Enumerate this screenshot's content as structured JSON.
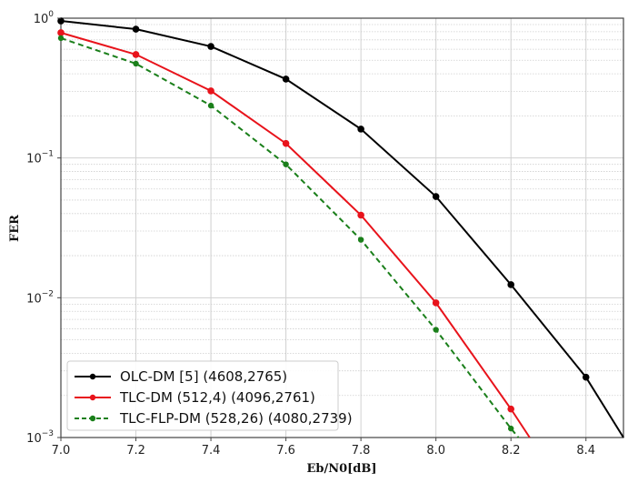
{
  "chart_data": {
    "type": "line",
    "title": "",
    "xlabel": "Eb/N0[dB]",
    "ylabel": "FER",
    "xlim": [
      7.0,
      8.5
    ],
    "ylim": [
      0.001,
      1
    ],
    "yscale": "log",
    "grid": true,
    "legend_position": "lower left",
    "x_ticks": [
      "7.0",
      "7.2",
      "7.4",
      "7.6",
      "7.8",
      "8.0",
      "8.2",
      "8.4"
    ],
    "y_ticks": [
      {
        "base": "10",
        "exp": "0"
      },
      {
        "base": "10",
        "exp": "−1"
      },
      {
        "base": "10",
        "exp": "−2"
      },
      {
        "base": "10",
        "exp": "−3"
      }
    ],
    "series": [
      {
        "name": "OLC-DM [5] (4608,2765)",
        "color": "#000000",
        "style": "solid",
        "x": [
          7.0,
          7.2,
          7.4,
          7.6,
          7.8,
          8.0,
          8.2,
          8.4,
          8.5
        ],
        "values": [
          0.956,
          0.835,
          0.628,
          0.367,
          0.161,
          0.053,
          0.0124,
          0.0027,
          0.001
        ],
        "markers": [
          true,
          true,
          true,
          true,
          true,
          true,
          true,
          true,
          false
        ]
      },
      {
        "name": "TLC-DM (512,4) (4096,2761)",
        "color": "#e8131b",
        "style": "solid",
        "x": [
          7.0,
          7.2,
          7.4,
          7.6,
          7.8,
          8.0,
          8.2,
          8.25
        ],
        "values": [
          0.787,
          0.55,
          0.302,
          0.127,
          0.039,
          0.0092,
          0.0016,
          0.001
        ],
        "markers": [
          true,
          true,
          true,
          true,
          true,
          true,
          true,
          false
        ]
      },
      {
        "name": "TLC-FLP-DM (528,26) (4080,2739)",
        "color": "#1a7f1a",
        "style": "dashed",
        "x": [
          7.0,
          7.2,
          7.4,
          7.6,
          7.8,
          8.0,
          8.2,
          8.22
        ],
        "values": [
          0.72,
          0.473,
          0.237,
          0.09,
          0.026,
          0.0059,
          0.00116,
          0.001
        ],
        "markers": [
          true,
          true,
          true,
          true,
          true,
          true,
          true,
          false
        ]
      }
    ]
  }
}
